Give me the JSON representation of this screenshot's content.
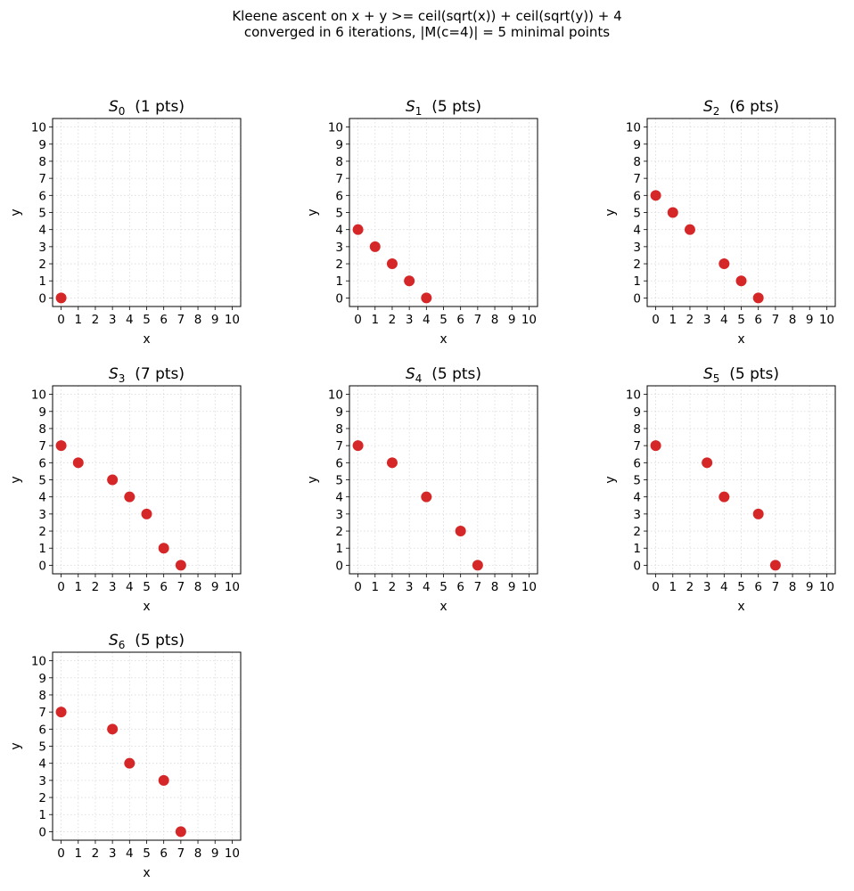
{
  "figure": {
    "title_line1": "Kleene ascent on  x + y >= ceil(sqrt(x)) + ceil(sqrt(y)) + 4",
    "title_line2": "converged in 6 iterations, |M(c=4)| = 5 minimal points",
    "colors": {
      "point": "#d62728",
      "grid": "#d9d9d9",
      "axes": "#000000"
    }
  },
  "chart_data": [
    {
      "type": "scatter",
      "title_base": "S",
      "title_sub": "0",
      "title_suffix": "(1 pts)",
      "xlabel": "x",
      "ylabel": "y",
      "xlim": [
        0,
        10
      ],
      "ylim": [
        0,
        10
      ],
      "grid": true,
      "x": [
        0
      ],
      "y": [
        0
      ]
    },
    {
      "type": "scatter",
      "title_base": "S",
      "title_sub": "1",
      "title_suffix": "(5 pts)",
      "xlabel": "x",
      "ylabel": "y",
      "xlim": [
        0,
        10
      ],
      "ylim": [
        0,
        10
      ],
      "grid": true,
      "x": [
        0,
        1,
        2,
        3,
        4
      ],
      "y": [
        4,
        3,
        2,
        1,
        0
      ]
    },
    {
      "type": "scatter",
      "title_base": "S",
      "title_sub": "2",
      "title_suffix": "(6 pts)",
      "xlabel": "x",
      "ylabel": "y",
      "xlim": [
        0,
        10
      ],
      "ylim": [
        0,
        10
      ],
      "grid": true,
      "x": [
        0,
        1,
        2,
        4,
        5,
        6
      ],
      "y": [
        6,
        5,
        4,
        2,
        1,
        0
      ]
    },
    {
      "type": "scatter",
      "title_base": "S",
      "title_sub": "3",
      "title_suffix": "(7 pts)",
      "xlabel": "x",
      "ylabel": "y",
      "xlim": [
        0,
        10
      ],
      "ylim": [
        0,
        10
      ],
      "grid": true,
      "x": [
        0,
        1,
        3,
        4,
        5,
        6,
        7
      ],
      "y": [
        7,
        6,
        5,
        4,
        3,
        1,
        0
      ]
    },
    {
      "type": "scatter",
      "title_base": "S",
      "title_sub": "4",
      "title_suffix": "(5 pts)",
      "xlabel": "x",
      "ylabel": "y",
      "xlim": [
        0,
        10
      ],
      "ylim": [
        0,
        10
      ],
      "grid": true,
      "x": [
        0,
        2,
        4,
        6,
        7
      ],
      "y": [
        7,
        6,
        4,
        2,
        0
      ]
    },
    {
      "type": "scatter",
      "title_base": "S",
      "title_sub": "5",
      "title_suffix": "(5 pts)",
      "xlabel": "x",
      "ylabel": "y",
      "xlim": [
        0,
        10
      ],
      "ylim": [
        0,
        10
      ],
      "grid": true,
      "x": [
        0,
        3,
        4,
        6,
        7
      ],
      "y": [
        7,
        6,
        4,
        3,
        0
      ]
    },
    {
      "type": "scatter",
      "title_base": "S",
      "title_sub": "6",
      "title_suffix": "(5 pts)",
      "xlabel": "x",
      "ylabel": "y",
      "xlim": [
        0,
        10
      ],
      "ylim": [
        0,
        10
      ],
      "grid": true,
      "x": [
        0,
        3,
        4,
        6,
        7
      ],
      "y": [
        7,
        6,
        4,
        3,
        0
      ]
    }
  ]
}
